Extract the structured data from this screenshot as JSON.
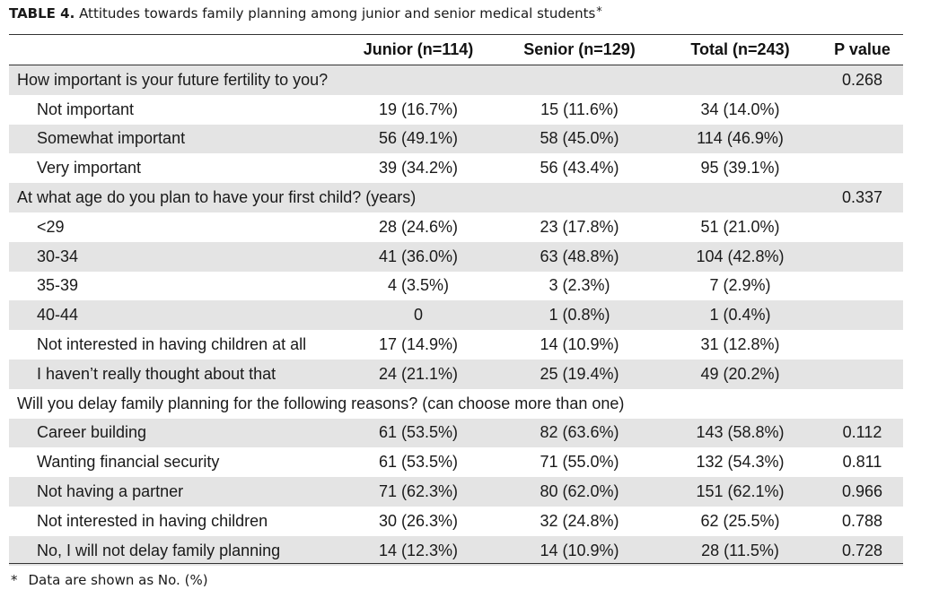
{
  "caption": {
    "label": "TABLE 4.",
    "text": "Attitudes towards family planning among junior and senior medical students",
    "marker": "*"
  },
  "headers": [
    "",
    "Junior (n=114)",
    "Senior (n=129)",
    "Total (n=243)",
    "P value"
  ],
  "rows": [
    {
      "type": "section",
      "label": "How important is your future fertility to you?",
      "junior": "",
      "senior": "",
      "total": "",
      "p": "0.268"
    },
    {
      "type": "item",
      "label": "Not important",
      "junior": "19 (16.7%)",
      "senior": "15 (11.6%)",
      "total": "34 (14.0%)",
      "p": ""
    },
    {
      "type": "item",
      "label": "Somewhat important",
      "junior": "56 (49.1%)",
      "senior": "58 (45.0%)",
      "total": "114 (46.9%)",
      "p": ""
    },
    {
      "type": "item",
      "label": "Very important",
      "junior": "39 (34.2%)",
      "senior": "56 (43.4%)",
      "total": "95 (39.1%)",
      "p": ""
    },
    {
      "type": "section",
      "label": "At what age do you plan to have your first child? (years)",
      "junior": "",
      "senior": "",
      "total": "",
      "p": "0.337"
    },
    {
      "type": "item",
      "label": "<29",
      "junior": "28 (24.6%)",
      "senior": "23 (17.8%)",
      "total": "51 (21.0%)",
      "p": ""
    },
    {
      "type": "item",
      "label": "30-34",
      "junior": "41 (36.0%)",
      "senior": "63 (48.8%)",
      "total": "104 (42.8%)",
      "p": ""
    },
    {
      "type": "item",
      "label": "35-39",
      "junior": "4 (3.5%)",
      "senior": "3 (2.3%)",
      "total": "7 (2.9%)",
      "p": ""
    },
    {
      "type": "item",
      "label": "40-44",
      "junior": "0",
      "senior": "1 (0.8%)",
      "total": "1 (0.4%)",
      "p": ""
    },
    {
      "type": "item",
      "label": "Not interested in having children at all",
      "junior": "17 (14.9%)",
      "senior": "14 (10.9%)",
      "total": "31 (12.8%)",
      "p": ""
    },
    {
      "type": "item",
      "label": "I haven’t really thought about that",
      "junior": "24 (21.1%)",
      "senior": "25 (19.4%)",
      "total": "49 (20.2%)",
      "p": ""
    },
    {
      "type": "section-wide",
      "label": "Will you delay family planning for the following reasons? (can choose more than one)"
    },
    {
      "type": "item",
      "label": "Career building",
      "junior": "61 (53.5%)",
      "senior": "82 (63.6%)",
      "total": "143 (58.8%)",
      "p": "0.112"
    },
    {
      "type": "item",
      "label": "Wanting financial security",
      "junior": "61 (53.5%)",
      "senior": "71 (55.0%)",
      "total": "132 (54.3%)",
      "p": "0.811"
    },
    {
      "type": "item",
      "label": "Not having a partner",
      "junior": "71 (62.3%)",
      "senior": "80 (62.0%)",
      "total": "151 (62.1%)",
      "p": "0.966"
    },
    {
      "type": "item",
      "label": "Not interested in having children",
      "junior": "30 (26.3%)",
      "senior": "32 (24.8%)",
      "total": "62 (25.5%)",
      "p": "0.788"
    },
    {
      "type": "item",
      "label": "No, I will not delay family planning",
      "junior": "14 (12.3%)",
      "senior": "14 (10.9%)",
      "total": "28 (11.5%)",
      "p": "0.728"
    }
  ],
  "footnote": {
    "marker": "*",
    "text": "Data are shown as No. (%)"
  }
}
